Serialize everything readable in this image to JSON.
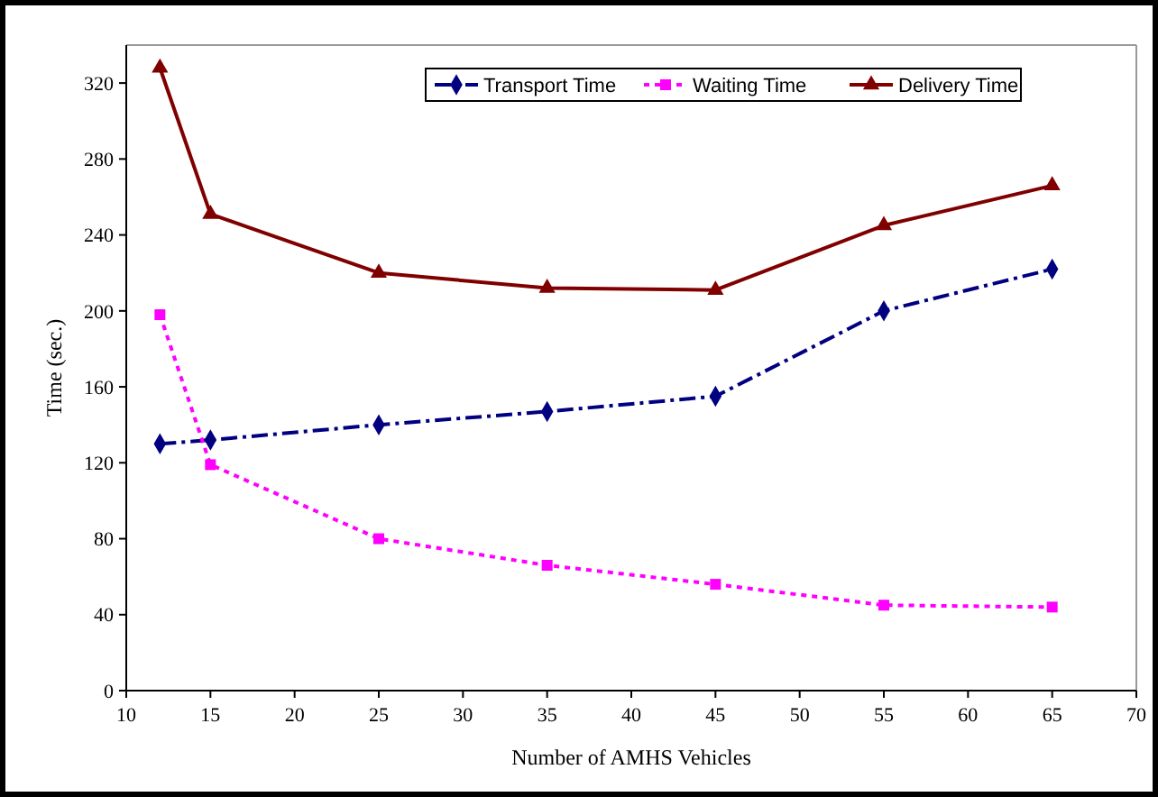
{
  "chart_data": {
    "type": "line",
    "xlabel": "Number of AMHS Vehicles",
    "ylabel": "Time (sec.)",
    "x": [
      12,
      15,
      25,
      35,
      45,
      55,
      65
    ],
    "xlim": [
      10,
      70
    ],
    "xticks": [
      10,
      15,
      20,
      25,
      30,
      35,
      40,
      45,
      50,
      55,
      60,
      65,
      70
    ],
    "ylim": [
      0,
      340
    ],
    "yticks": [
      0,
      40,
      80,
      120,
      160,
      200,
      240,
      280,
      320
    ],
    "grid": false,
    "legend": "top right",
    "series": [
      {
        "name": "Transport Time",
        "color": "#000080",
        "marker": "diamond",
        "line_style": "dashed",
        "values": [
          130,
          132,
          140,
          147,
          155,
          200,
          222
        ]
      },
      {
        "name": "Waiting Time",
        "color": "#ff00ff",
        "marker": "square",
        "line_style": "dotted",
        "values": [
          198,
          119,
          80,
          66,
          56,
          45,
          44
        ]
      },
      {
        "name": "Delivery Time",
        "color": "#800000",
        "marker": "triangle",
        "line_style": "solid",
        "values": [
          328,
          251,
          220,
          212,
          211,
          245,
          266
        ]
      }
    ]
  }
}
